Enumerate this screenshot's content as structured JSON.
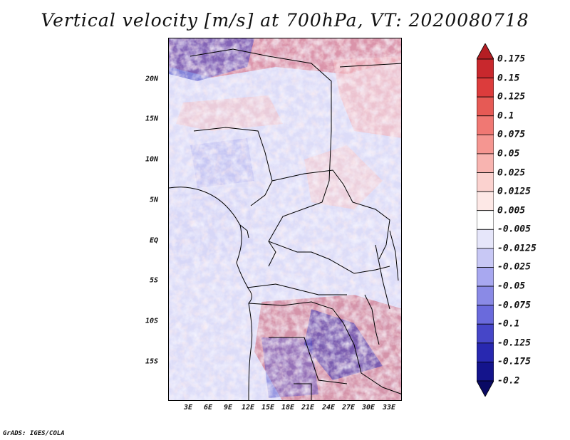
{
  "title": "Vertical velocity [m/s] at 700hPa, VT: 2020080718",
  "footer": "GrADS: IGES/COLA",
  "map": {
    "lat_labels": [
      "20N",
      "15N",
      "10N",
      "5N",
      "EQ",
      "5S",
      "10S",
      "15S"
    ],
    "lon_labels": [
      "3E",
      "6E",
      "9E",
      "12E",
      "15E",
      "18E",
      "21E",
      "24E",
      "27E",
      "30E",
      "33E"
    ]
  },
  "colorbar": {
    "labels": [
      "0.175",
      "0.15",
      "0.125",
      "0.1",
      "0.075",
      "0.05",
      "0.025",
      "0.0125",
      "0.005",
      "-0.005",
      "-0.0125",
      "-0.025",
      "-0.05",
      "-0.075",
      "-0.1",
      "-0.125",
      "-0.175",
      "-0.2"
    ],
    "colors": [
      "#b41e23",
      "#c8282d",
      "#dc3c3c",
      "#e65a55",
      "#f07873",
      "#f59691",
      "#f8b4b0",
      "#fbd2cf",
      "#fde8e6",
      "#ffffff",
      "#e6e6fa",
      "#c8c8f5",
      "#a8a8f0",
      "#8a8ae6",
      "#6a6adc",
      "#4646c8",
      "#2828b0",
      "#14148c",
      "#0a0a64"
    ]
  }
}
